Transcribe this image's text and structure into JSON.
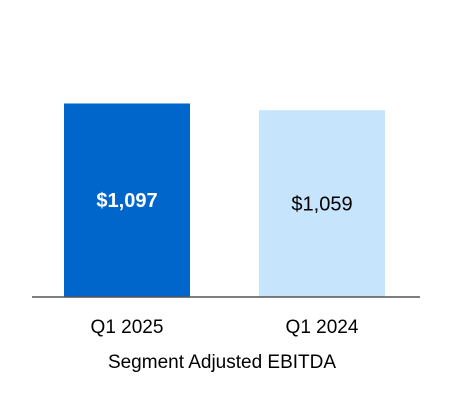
{
  "chart_data": {
    "type": "bar",
    "categories": [
      "Q1 2025",
      "Q1 2024"
    ],
    "values": [
      1097,
      1059
    ],
    "data_labels": [
      "$1,097",
      "$1,059"
    ],
    "title": "",
    "xlabel": "Segment Adjusted EBITDA",
    "ylabel": "",
    "ylim": [
      0,
      1200
    ],
    "grid": false,
    "legend": "none",
    "colors": {
      "bars": [
        "#0066cc",
        "#c6e4fb"
      ],
      "labels": [
        "#ffffff",
        "#000000"
      ],
      "axis": "#555555"
    }
  }
}
